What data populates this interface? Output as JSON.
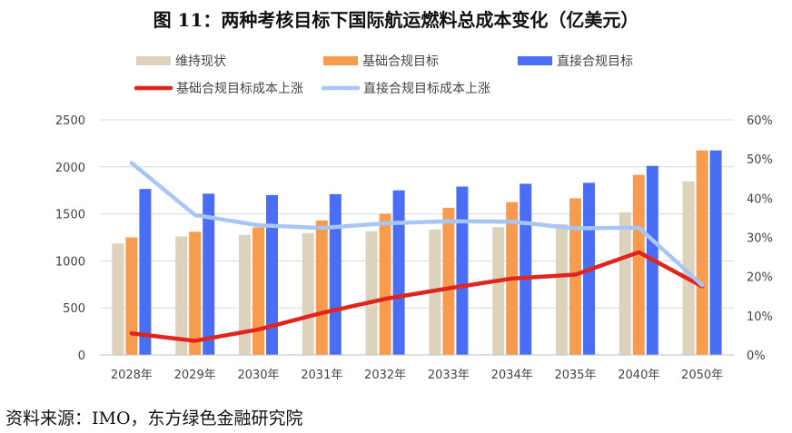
{
  "title": "图 11：两种考核目标下国际航运燃料总成本变化（亿美元）",
  "source": "资料来源：IMO，东方绿色金融研究院",
  "chart_data": {
    "type": "bar",
    "categories": [
      "2028年",
      "2029年",
      "2030年",
      "2031年",
      "2032年",
      "2033年",
      "2034年",
      "2035年",
      "2040年",
      "2050年"
    ],
    "series": [
      {
        "name": "维持现状",
        "kind": "bar",
        "axis": "left",
        "color": "#ddd3bd",
        "values": [
          1185,
          1260,
          1275,
          1295,
          1315,
          1335,
          1360,
          1390,
          1515,
          1845
        ]
      },
      {
        "name": "基础合规目标",
        "kind": "bar",
        "axis": "left",
        "color": "#f79c4f",
        "values": [
          1250,
          1310,
          1355,
          1430,
          1500,
          1565,
          1625,
          1665,
          1915,
          2175
        ]
      },
      {
        "name": "直接合规目标",
        "kind": "bar",
        "axis": "left",
        "color": "#4a6df5",
        "values": [
          1765,
          1715,
          1700,
          1710,
          1750,
          1790,
          1820,
          1830,
          2010,
          2175
        ]
      },
      {
        "name": "基础合规目标成本上涨",
        "kind": "line",
        "axis": "right",
        "color": "#e0251e",
        "values": [
          0.055,
          0.036,
          0.065,
          0.107,
          0.143,
          0.17,
          0.195,
          0.205,
          0.262,
          0.175
        ]
      },
      {
        "name": "直接合规目标成本上涨",
        "kind": "line",
        "axis": "right",
        "color": "#a8c6f4",
        "values": [
          0.49,
          0.357,
          0.331,
          0.324,
          0.336,
          0.341,
          0.34,
          0.323,
          0.325,
          0.178
        ]
      }
    ],
    "y_left": {
      "min": 0,
      "max": 2500,
      "ticks": [
        "0",
        "500",
        "1000",
        "1500",
        "2000",
        "2500"
      ]
    },
    "y_right": {
      "min": 0,
      "max": 0.6,
      "ticks": [
        "0%",
        "10%",
        "20%",
        "30%",
        "40%",
        "50%",
        "60%"
      ]
    },
    "legend_position": "top",
    "grid": true
  }
}
